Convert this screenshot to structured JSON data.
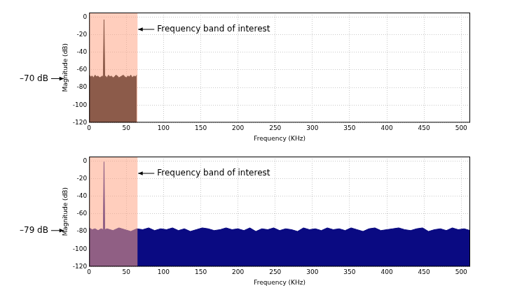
{
  "chart_data": [
    {
      "type": "line",
      "x_label": "Frequency (KHz)",
      "y_label": "Magnitude (dB)",
      "x": [
        0,
        2,
        4,
        6,
        8,
        10,
        12,
        14,
        16,
        18,
        19,
        20,
        21,
        22,
        24,
        26,
        28,
        30,
        32,
        34,
        36,
        38,
        40,
        42,
        44,
        46,
        48,
        50,
        52,
        54,
        56,
        58,
        60,
        62,
        64
      ],
      "values": [
        -66,
        -68,
        -67,
        -69,
        -66,
        -68,
        -67,
        -69,
        -68,
        -67,
        -68,
        -3,
        -68,
        -67,
        -69,
        -66,
        -68,
        -67,
        -69,
        -68,
        -66,
        -67,
        -69,
        -68,
        -67,
        -66,
        -68,
        -69,
        -67,
        -68,
        -66,
        -69,
        -67,
        -68,
        -66
      ],
      "color": "#000000",
      "xlim": [
        0,
        512
      ],
      "xticks": [
        0,
        50,
        100,
        150,
        200,
        250,
        300,
        350,
        400,
        450,
        500
      ],
      "ylim": [
        -120,
        5
      ],
      "yticks": [
        -120,
        -100,
        -80,
        -60,
        -40,
        -20,
        0
      ],
      "grid": true,
      "band": {
        "from": 0,
        "to": 65,
        "label": "Frequency band of interest"
      },
      "level": {
        "value": -70,
        "label": "–70 dB"
      }
    },
    {
      "type": "line",
      "x_label": "Frequency (KHz)",
      "y_label": "Magnitude (dB)",
      "x": [
        0,
        4,
        8,
        12,
        16,
        19,
        20,
        21,
        24,
        32,
        40,
        48,
        56,
        64,
        72,
        80,
        88,
        96,
        104,
        112,
        120,
        128,
        136,
        144,
        152,
        160,
        168,
        176,
        184,
        192,
        200,
        208,
        216,
        224,
        232,
        240,
        248,
        256,
        264,
        272,
        280,
        288,
        296,
        304,
        312,
        320,
        328,
        336,
        344,
        352,
        360,
        368,
        376,
        384,
        392,
        400,
        408,
        416,
        424,
        432,
        440,
        448,
        456,
        464,
        472,
        480,
        488,
        496,
        504,
        512
      ],
      "values": [
        -76,
        -78,
        -77,
        -79,
        -77,
        -78,
        -1,
        -78,
        -77,
        -79,
        -76,
        -78,
        -80,
        -77,
        -78,
        -76,
        -79,
        -77,
        -78,
        -76,
        -79,
        -77,
        -80,
        -78,
        -76,
        -77,
        -79,
        -78,
        -76,
        -78,
        -77,
        -79,
        -76,
        -80,
        -77,
        -78,
        -76,
        -79,
        -77,
        -78,
        -80,
        -76,
        -78,
        -77,
        -79,
        -76,
        -78,
        -77,
        -79,
        -76,
        -78,
        -80,
        -77,
        -76,
        -79,
        -78,
        -77,
        -76,
        -78,
        -79,
        -77,
        -76,
        -80,
        -78,
        -77,
        -79,
        -76,
        -78,
        -77,
        -79
      ],
      "color": "#0a0a82",
      "xlim": [
        0,
        512
      ],
      "xticks": [
        0,
        50,
        100,
        150,
        200,
        250,
        300,
        350,
        400,
        450,
        500
      ],
      "ylim": [
        -120,
        5
      ],
      "yticks": [
        -120,
        -100,
        -80,
        -60,
        -40,
        -20,
        0
      ],
      "grid": true,
      "band": {
        "from": 0,
        "to": 65,
        "label": "Frequency band of interest"
      },
      "level": {
        "value": -79,
        "label": "–79 dB"
      }
    }
  ]
}
